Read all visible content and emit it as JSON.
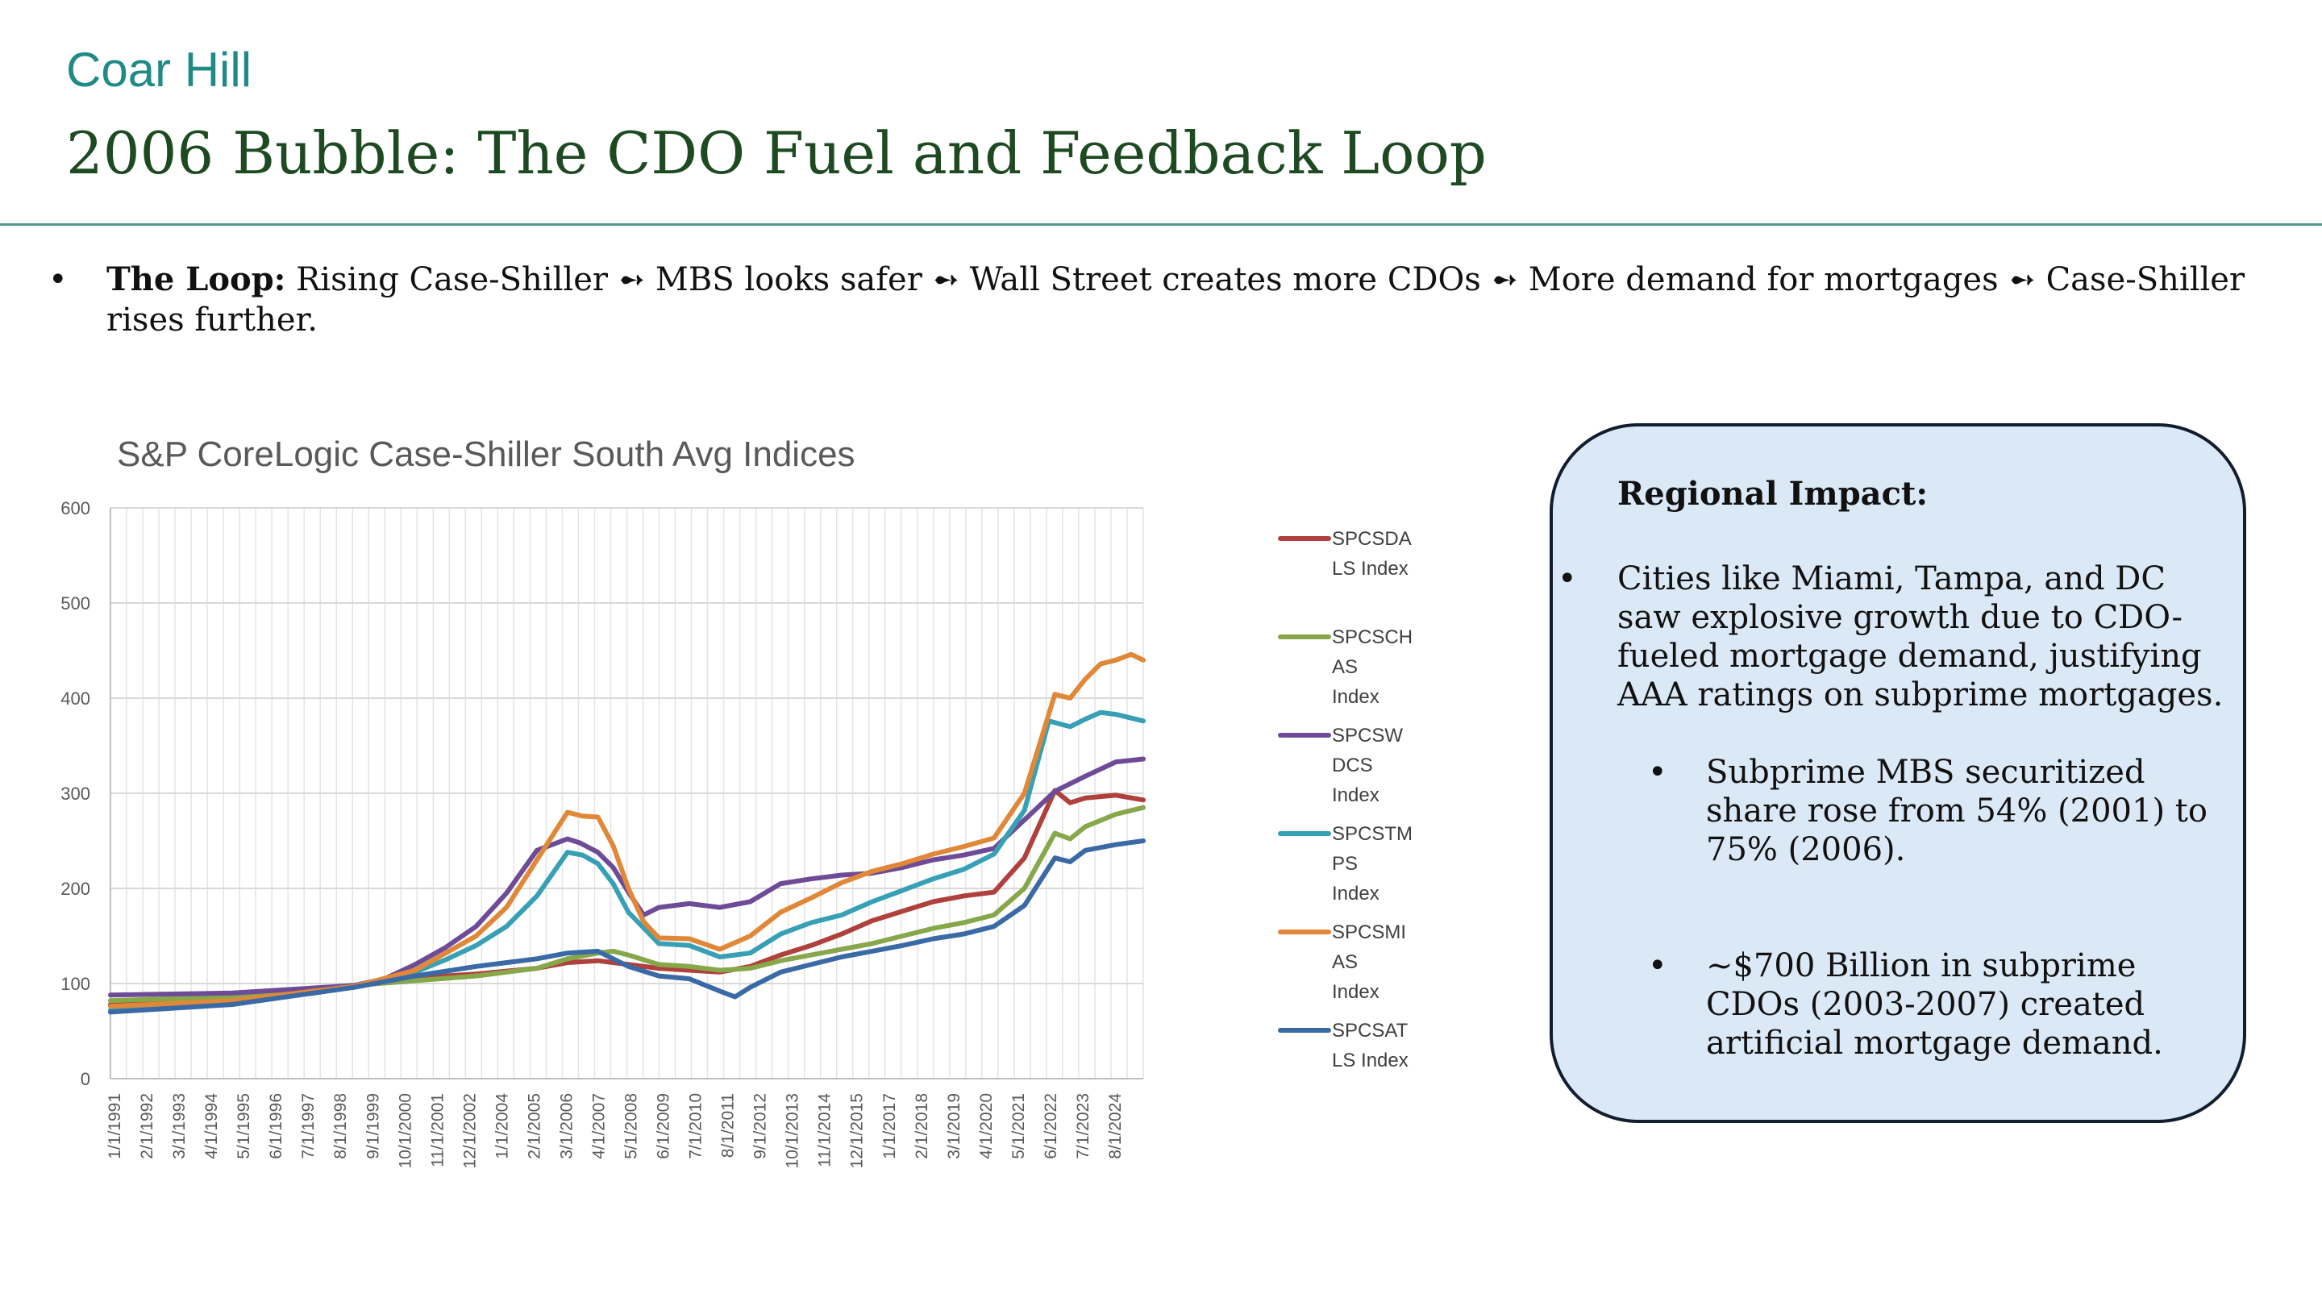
{
  "header": {
    "brand": "Coar Hill",
    "title": "2006 Bubble: The CDO Fuel and Feedback Loop"
  },
  "loop": {
    "bullet": "•",
    "label": "The Loop:",
    "text": " Rising Case-Shiller ➻ MBS looks safer ➻ Wall Street creates more CDOs ➻ More demand for mortgages ➻ Case-Shiller rises further."
  },
  "impact_box": {
    "heading": "Regional Impact:",
    "bullet1": "Cities like Miami, Tampa, and DC saw explosive growth due to CDO-fueled mortgage demand, justifying AAA ratings on subprime mortgages.",
    "bullet2": "Subprime MBS securitized share rose from 54% (2001) to 75% (2006).",
    "bullet3": "~$700 Billion in subprime CDOs (2003-2007) created artificial mortgage demand.",
    "marker": "•"
  },
  "colors": {
    "SPCSDALS": "#b0403c",
    "SPCSCHAS": "#86a84a",
    "SPCSWDCS": "#6e4b96",
    "SPCSTMPS": "#37a0b4",
    "SPCSMIAS": "#e08838",
    "SPCSATLS": "#3a6aa6"
  },
  "chart_data": {
    "type": "line",
    "title": "S&P CoreLogic Case-Shiller South Avg Indices",
    "ylim": [
      0,
      600
    ],
    "yticks": [
      0,
      100,
      200,
      300,
      400,
      500,
      600
    ],
    "xlim": [
      1991.0,
      2024.9
    ],
    "grid": true,
    "legend_position": "right",
    "xtick_labels": [
      "1/1/1991",
      "2/1/1992",
      "3/1/1993",
      "4/1/1994",
      "5/1/1995",
      "6/1/1996",
      "7/1/1997",
      "8/1/1998",
      "9/1/1999",
      "10/1/2000",
      "11/1/2001",
      "12/1/2002",
      "1/1/2004",
      "2/1/2005",
      "3/1/2006",
      "4/1/2007",
      "5/1/2008",
      "6/1/2009",
      "7/1/2010",
      "8/1/2011",
      "9/1/2012",
      "10/1/2013",
      "11/1/2014",
      "12/1/2015",
      "1/1/2017",
      "2/1/2018",
      "3/1/2019",
      "4/1/2020",
      "5/1/2021",
      "6/1/2022",
      "7/1/2023",
      "8/1/2024"
    ],
    "series": [
      {
        "name": "SPCSDALS Index",
        "legend_lines": [
          "SPCSDA",
          "LS Index"
        ],
        "color_key": "SPCSDALS",
        "x": [
          1991,
          1995,
          1999,
          2001,
          2003,
          2005,
          2006,
          2007,
          2008,
          2009,
          2010,
          2011,
          2012,
          2013,
          2014,
          2015,
          2016,
          2017,
          2018,
          2019,
          2020,
          2021,
          2022,
          2022.5,
          2023,
          2024,
          2024.9
        ],
        "y": [
          78,
          84,
          98,
          106,
          110,
          116,
          122,
          124,
          120,
          116,
          114,
          112,
          118,
          130,
          140,
          152,
          166,
          176,
          186,
          192,
          196,
          232,
          303,
          290,
          295,
          298,
          293
        ]
      },
      {
        "name": "SPCSCHAS Index",
        "legend_lines": [
          "SPCSCH",
          "AS",
          "Index"
        ],
        "color_key": "SPCSCHAS",
        "x": [
          1991,
          1995,
          1999,
          2001,
          2003,
          2005,
          2006,
          2007,
          2007.5,
          2008,
          2009,
          2010,
          2011,
          2012,
          2013,
          2014,
          2015,
          2016,
          2017,
          2018,
          2019,
          2020,
          2021,
          2022,
          2022.5,
          2023,
          2024,
          2024.9
        ],
        "y": [
          82,
          86,
          98,
          103,
          108,
          116,
          126,
          132,
          134,
          130,
          120,
          118,
          114,
          116,
          124,
          130,
          136,
          142,
          150,
          158,
          164,
          172,
          200,
          258,
          252,
          265,
          278,
          285
        ]
      },
      {
        "name": "SPCSWDCS Index",
        "legend_lines": [
          "SPCSW",
          "DCS",
          "Index"
        ],
        "color_key": "SPCSWDCS",
        "x": [
          1991,
          1995,
          1999,
          2000,
          2001,
          2002,
          2003,
          2004,
          2005,
          2006,
          2006.4,
          2007,
          2007.5,
          2008,
          2008.5,
          2009,
          2010,
          2011,
          2012,
          2013,
          2014,
          2015,
          2016,
          2017,
          2018,
          2019,
          2020,
          2021,
          2022,
          2023,
          2024,
          2024.9
        ],
        "y": [
          88,
          90,
          98,
          105,
          120,
          138,
          160,
          195,
          240,
          252,
          248,
          238,
          222,
          196,
          172,
          180,
          184,
          180,
          186,
          205,
          210,
          214,
          216,
          222,
          230,
          235,
          242,
          272,
          302,
          318,
          333,
          336
        ]
      },
      {
        "name": "SPCSTMPS Index",
        "legend_lines": [
          "SPCSTM",
          "PS",
          "Index"
        ],
        "color_key": "SPCSTMPS",
        "x": [
          1991,
          1995,
          1999,
          2001,
          2002,
          2003,
          2004,
          2005,
          2006,
          2006.5,
          2007,
          2007.5,
          2008,
          2009,
          2010,
          2011,
          2012,
          2013,
          2014,
          2015,
          2016,
          2017,
          2018,
          2019,
          2020,
          2021,
          2021.8,
          2022.5,
          2023,
          2023.5,
          2024,
          2024.9
        ],
        "y": [
          72,
          80,
          96,
          112,
          125,
          140,
          160,
          192,
          238,
          235,
          226,
          205,
          175,
          142,
          140,
          128,
          132,
          152,
          164,
          172,
          186,
          198,
          210,
          220,
          236,
          282,
          376,
          370,
          378,
          385,
          383,
          376
        ]
      },
      {
        "name": "SPCSMIAS Index",
        "legend_lines": [
          "SPCSMI",
          "AS",
          "Index"
        ],
        "color_key": "SPCSMIAS",
        "x": [
          1991,
          1995,
          1999,
          2001,
          2003,
          2004,
          2005,
          2006,
          2006.5,
          2007,
          2007.5,
          2008,
          2008.5,
          2009,
          2010,
          2011,
          2012,
          2013,
          2014,
          2015,
          2016,
          2017,
          2018,
          2019,
          2020,
          2021,
          2022,
          2022.5,
          2023,
          2023.5,
          2024,
          2024.5,
          2024.9
        ],
        "y": [
          76,
          82,
          97,
          114,
          150,
          180,
          230,
          280,
          276,
          275,
          245,
          200,
          165,
          148,
          147,
          136,
          150,
          175,
          190,
          206,
          218,
          226,
          236,
          244,
          253,
          300,
          404,
          400,
          420,
          436,
          440,
          446,
          440
        ]
      },
      {
        "name": "SPCSATLS Index",
        "legend_lines": [
          "SPCSAT",
          "LS Index"
        ],
        "color_key": "SPCSATLS",
        "x": [
          1991,
          1995,
          1999,
          2001,
          2003,
          2005,
          2006,
          2007,
          2008,
          2009,
          2010,
          2011,
          2011.5,
          2012,
          2013,
          2014,
          2015,
          2016,
          2017,
          2018,
          2019,
          2020,
          2021,
          2022,
          2022.5,
          2023,
          2024,
          2024.9
        ],
        "y": [
          70,
          78,
          96,
          108,
          118,
          126,
          132,
          134,
          118,
          108,
          105,
          92,
          86,
          96,
          112,
          120,
          128,
          134,
          140,
          147,
          152,
          160,
          182,
          232,
          228,
          240,
          246,
          250
        ]
      }
    ]
  }
}
